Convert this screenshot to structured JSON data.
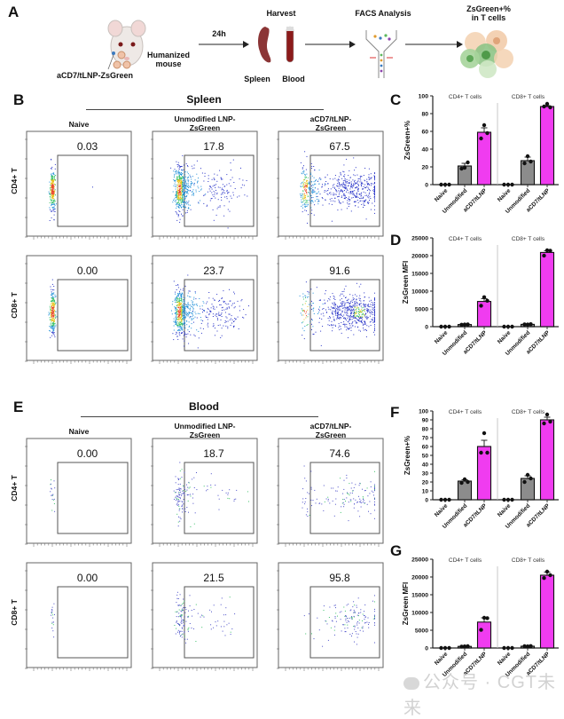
{
  "panels": {
    "A": "A",
    "B": "B",
    "C": "C",
    "D": "D",
    "E": "E",
    "F": "F",
    "G": "G"
  },
  "schematic": {
    "injection_label": "aCD7/tLNP-ZsGreen",
    "mouse_label_line1": "Humanized",
    "mouse_label_line2": "mouse",
    "time_label": "24h",
    "harvest_label": "Harvest",
    "spleen_label": "Spleen",
    "blood_label": "Blood",
    "facs_label": "FACS Analysis",
    "readout_line1": "ZsGreen+%",
    "readout_line2": "in T cells"
  },
  "flow_sections": [
    {
      "title": "Spleen",
      "columns": [
        {
          "line1": "Naive",
          "line2": ""
        },
        {
          "line1": "Unmodified LNP-",
          "line2": "ZsGreen"
        },
        {
          "line1": "aCD7/tLNP-",
          "line2": "ZsGreen"
        }
      ],
      "rows": [
        {
          "label": "CD4+ T",
          "gate_values": [
            "0.03",
            "17.8",
            "67.5"
          ]
        },
        {
          "label": "CD8+ T",
          "gate_values": [
            "0.00",
            "23.7",
            "91.6"
          ]
        }
      ],
      "density": "high"
    },
    {
      "title": "Blood",
      "columns": [
        {
          "line1": "Naive",
          "line2": ""
        },
        {
          "line1": "Unmodified LNP-",
          "line2": "ZsGreen"
        },
        {
          "line1": "aCD7/tLNP-",
          "line2": "ZsGreen"
        }
      ],
      "rows": [
        {
          "label": "CD4+ T",
          "gate_values": [
            "0.00",
            "18.7",
            "74.6"
          ]
        },
        {
          "label": "CD8+ T",
          "gate_values": [
            "0.00",
            "21.5",
            "95.8"
          ]
        }
      ],
      "density": "low"
    }
  ],
  "colors": {
    "naive": "#222222",
    "unmodified": "#8c8c8c",
    "aCD7": "#f03cf0",
    "divider": "#bbbbbb"
  },
  "chart_data": [
    {
      "id": "C",
      "type": "bar",
      "title": "",
      "ylabel": "ZsGreen+%",
      "xlabel": "",
      "ylim": [
        0,
        100
      ],
      "yticks": [
        0,
        20,
        40,
        60,
        80,
        100
      ],
      "groups": [
        "CD4+ T cells",
        "CD8+ T cells"
      ],
      "categories": [
        "Naive",
        "Unmodified",
        "aCD7/tLNP"
      ],
      "series": [
        {
          "group": "CD4+ T cells",
          "means": [
            0,
            21,
            59
          ],
          "sem": [
            0,
            3,
            5
          ],
          "points": [
            [
              0,
              0,
              0
            ],
            [
              19,
              18,
              25
            ],
            [
              67,
              52,
              58
            ]
          ]
        },
        {
          "group": "CD8+ T cells",
          "means": [
            0,
            27,
            88
          ],
          "sem": [
            0,
            4,
            1
          ],
          "points": [
            [
              0,
              0,
              0
            ],
            [
              32,
              24,
              26
            ],
            [
              91,
              88,
              87
            ]
          ]
        }
      ],
      "legend": "none",
      "grid": false
    },
    {
      "id": "D",
      "type": "bar",
      "title": "",
      "ylabel": "ZsGreen  MFI",
      "xlabel": "",
      "ylim": [
        0,
        25000
      ],
      "yticks": [
        0,
        5000,
        10000,
        15000,
        20000,
        25000
      ],
      "groups": [
        "CD4+ T cells",
        "CD8+ T cells"
      ],
      "categories": [
        "Naive",
        "Unmodified",
        "aCD7/tLNP"
      ],
      "series": [
        {
          "group": "CD4+ T cells",
          "means": [
            0,
            600,
            7100
          ],
          "sem": [
            0,
            60,
            800
          ],
          "points": [
            [
              0,
              0,
              0
            ],
            [
              600,
              550,
              650
            ],
            [
              8300,
              5900,
              7300
            ]
          ]
        },
        {
          "group": "CD8+ T cells",
          "means": [
            0,
            650,
            20900
          ],
          "sem": [
            0,
            60,
            500
          ],
          "points": [
            [
              0,
              0,
              0
            ],
            [
              600,
              650,
              700
            ],
            [
              21500,
              20000,
              21400
            ]
          ]
        }
      ],
      "legend": "none",
      "grid": false
    },
    {
      "id": "F",
      "type": "bar",
      "title": "",
      "ylabel": "ZsGreen+%",
      "xlabel": "",
      "ylim": [
        0,
        100
      ],
      "yticks": [
        0,
        10,
        20,
        30,
        40,
        50,
        60,
        70,
        80,
        90,
        100
      ],
      "groups": [
        "CD4+ T cells",
        "CD8+ T cells"
      ],
      "categories": [
        "Naive",
        "Unmodified",
        "aCD7/tLNP"
      ],
      "series": [
        {
          "group": "CD4+ T cells",
          "means": [
            0,
            21,
            60
          ],
          "sem": [
            0,
            1.5,
            7
          ],
          "points": [
            [
              0,
              0,
              0
            ],
            [
              23,
              19,
              20
            ],
            [
              75,
              53,
              53
            ]
          ]
        },
        {
          "group": "CD8+ T cells",
          "means": [
            0,
            24,
            90
          ],
          "sem": [
            0,
            3,
            3
          ],
          "points": [
            [
              0,
              0,
              0
            ],
            [
              28,
              20,
              24
            ],
            [
              96,
              86,
              88
            ]
          ]
        }
      ],
      "legend": "none",
      "grid": false
    },
    {
      "id": "G",
      "type": "bar",
      "title": "",
      "ylabel": "ZsGreen  MFI",
      "xlabel": "",
      "ylim": [
        0,
        25000
      ],
      "yticks": [
        0,
        5000,
        10000,
        15000,
        20000,
        25000
      ],
      "groups": [
        "CD4+ T cells",
        "CD8+ T cells"
      ],
      "categories": [
        "Naive",
        "Unmodified",
        "aCD7/tLNP"
      ],
      "series": [
        {
          "group": "CD4+ T cells",
          "means": [
            0,
            450,
            7300
          ],
          "sem": [
            0,
            50,
            1200
          ],
          "points": [
            [
              0,
              0,
              0
            ],
            [
              450,
              400,
              500
            ],
            [
              8500,
              5100,
              8400
            ]
          ]
        },
        {
          "group": "CD8+ T cells",
          "means": [
            0,
            500,
            20500
          ],
          "sem": [
            0,
            50,
            900
          ],
          "points": [
            [
              0,
              0,
              0
            ],
            [
              450,
              500,
              550
            ],
            [
              21500,
              19700,
              20500
            ]
          ]
        }
      ],
      "legend": "none",
      "grid": false
    }
  ],
  "watermark": "公众号 · CGT未来"
}
